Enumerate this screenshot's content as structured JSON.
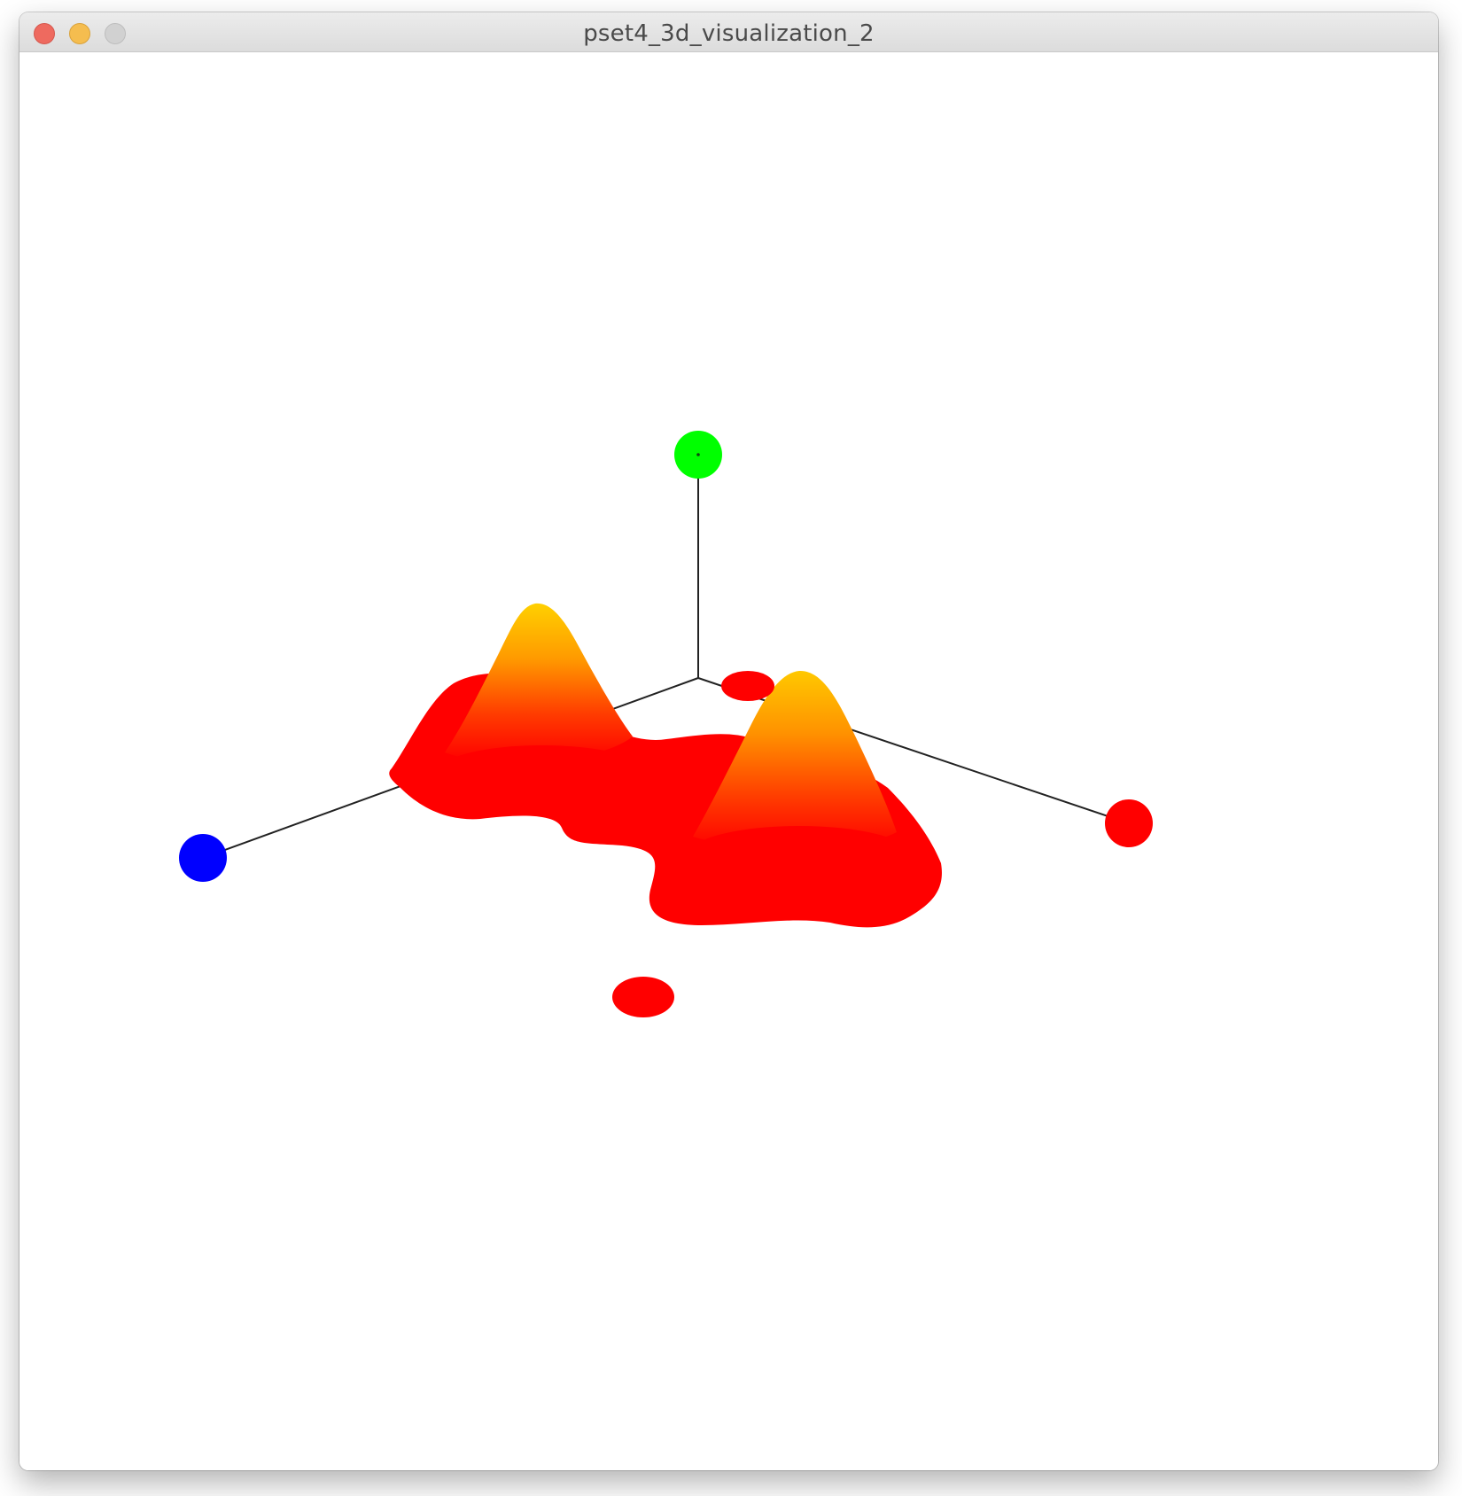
{
  "window": {
    "title": "pset4_3d_visualization_2"
  },
  "scene": {
    "background": "#ffffff",
    "axis_line_color": "#222222",
    "axis_markers": [
      {
        "axis": "x",
        "color": "#ff0000"
      },
      {
        "axis": "y",
        "color": "#00ff00"
      },
      {
        "axis": "z",
        "color": "#0000ff"
      }
    ],
    "surface_colors": {
      "base": "#ff0000",
      "mid": "#ff7a00",
      "peak": "#ffd000"
    },
    "surface_peaks": 2
  }
}
